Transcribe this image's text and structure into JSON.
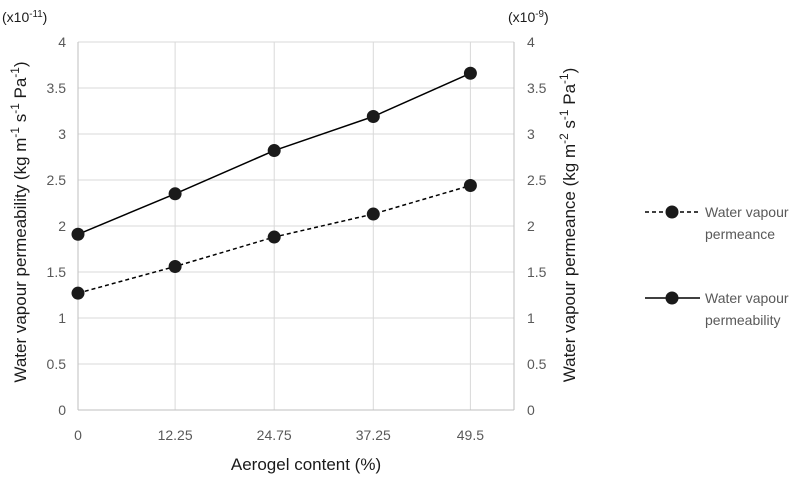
{
  "chart_data": {
    "type": "line",
    "x": [
      0,
      12.25,
      24.75,
      37.25,
      49.5
    ],
    "x_tick_labels": [
      "0",
      "12.25",
      "24.75",
      "37.25",
      "49.5"
    ],
    "xlabel": "Aerogel content (%)",
    "xlim": [
      0,
      55
    ],
    "y_left": {
      "label_parts": [
        "Water vapour permeability (kg m",
        "-1",
        " s",
        "-1",
        " Pa",
        "-1",
        ")"
      ],
      "multiplier_parts": [
        "(x10",
        "-11",
        ")"
      ],
      "lim": [
        0,
        4
      ],
      "ticks": [
        "0",
        "0.5",
        "1",
        "1.5",
        "2",
        "2.5",
        "3",
        "3.5",
        "4"
      ]
    },
    "y_right": {
      "label_parts": [
        "Water vapour permeance (kg m",
        "-2",
        " s",
        "-1",
        " Pa",
        "-1",
        ")"
      ],
      "multiplier_parts": [
        "(x10",
        "-9",
        ")"
      ],
      "lim": [
        0,
        4
      ],
      "ticks": [
        "0",
        "0.5",
        "1",
        "1.5",
        "2",
        "2.5",
        "3",
        "3.5",
        "4"
      ]
    },
    "series": [
      {
        "name_lines": [
          "Water vapour",
          "permeance"
        ],
        "axis": "right",
        "dash": true,
        "values": [
          1.27,
          1.56,
          1.88,
          2.13,
          2.44
        ]
      },
      {
        "name_lines": [
          "Water vapour",
          "permeability"
        ],
        "axis": "left",
        "dash": false,
        "values": [
          1.91,
          2.35,
          2.82,
          3.19,
          3.66
        ]
      }
    ],
    "grid": true,
    "legend": "right",
    "colors": {
      "line": "#000000",
      "marker": "#1a1a1a",
      "grid": "#d9d9d9",
      "axis": "#bfbfbf"
    }
  }
}
